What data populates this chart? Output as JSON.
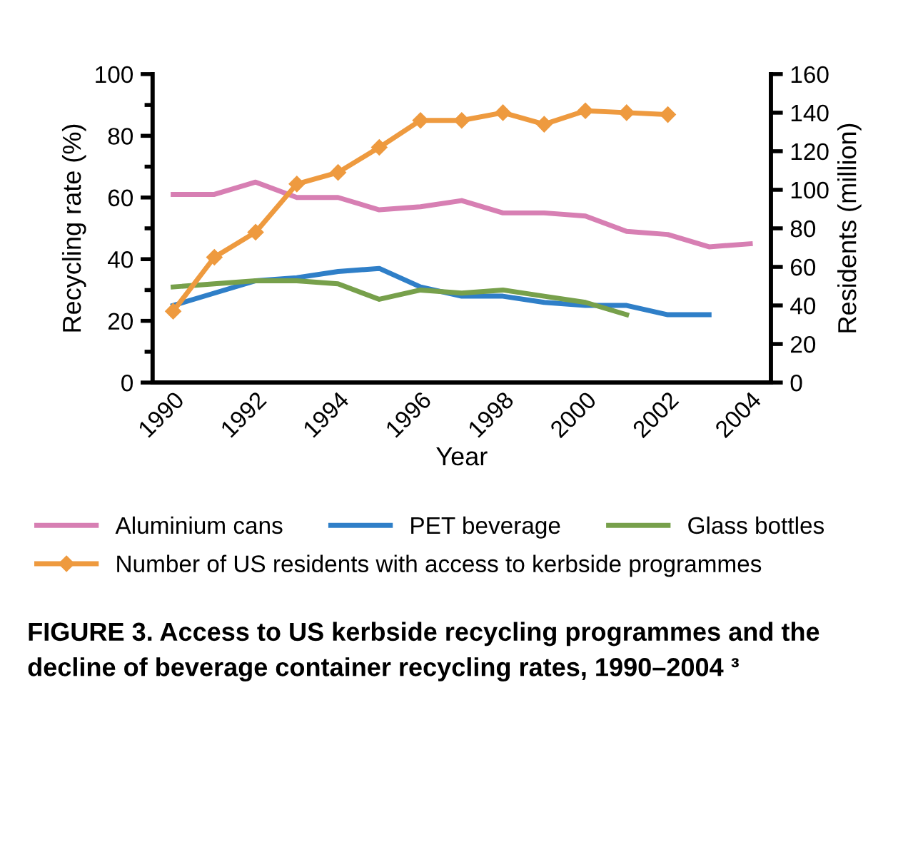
{
  "chart_data": {
    "type": "line",
    "title": "FIGURE 3. Access to US kerbside recycling programmes and the decline of beverage container recycling rates, 1990–2004 ³",
    "xlabel": "Year",
    "ylabel": "Recycling rate (%)",
    "y2label": "Residents (million)",
    "categories": [
      "1990",
      null,
      "1992",
      null,
      "1994",
      null,
      "1996",
      null,
      "1998",
      null,
      "2000",
      null,
      "2002",
      null,
      "2004"
    ],
    "series": [
      {
        "name": "Aluminium cans",
        "color": "#d77fb3",
        "values": [
          61,
          61,
          65,
          60,
          60,
          56,
          57,
          59,
          55,
          55,
          54,
          49,
          48,
          44,
          45
        ]
      },
      {
        "name": "PET beverage",
        "color": "#2f7fc8",
        "values": [
          25,
          29,
          33,
          34,
          36,
          37,
          31,
          28,
          28,
          26,
          25,
          25,
          22,
          22,
          null
        ]
      },
      {
        "name": "Glass bottles",
        "color": "#77a04b",
        "values": [
          31,
          32,
          33,
          33,
          32,
          27,
          30,
          29,
          30,
          28,
          26,
          22,
          null,
          null,
          null
        ]
      },
      {
        "name": "Number of US residents with access to kerbside programmes",
        "color": "#ee9a3f",
        "axis": "y2",
        "marker": "diamond",
        "values": [
          37,
          65,
          78,
          103,
          109,
          122,
          136,
          136,
          140,
          134,
          141,
          140,
          139,
          null,
          null
        ]
      }
    ],
    "ylim": [
      0,
      100
    ],
    "yticks": [
      0,
      20,
      40,
      60,
      80,
      100
    ],
    "y2lim": [
      0,
      160
    ],
    "y2ticks": [
      0,
      20,
      40,
      60,
      80,
      100,
      120,
      140,
      160
    ],
    "grid": false,
    "legend": "bottom"
  }
}
